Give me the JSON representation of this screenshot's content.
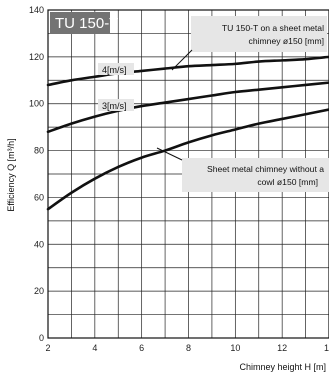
{
  "chart_data": {
    "type": "line",
    "title": "TU 150-T",
    "xlabel": "Chimney height H [m]",
    "ylabel": "Efficiency Q [m³/h]",
    "xlim": [
      2,
      14
    ],
    "ylim": [
      0,
      140
    ],
    "xticks": [
      2,
      4,
      6,
      8,
      10,
      12,
      14
    ],
    "yticks": [
      0,
      20,
      40,
      60,
      80,
      100,
      120,
      140
    ],
    "grid": true,
    "series": [
      {
        "name": "4[m/s]",
        "group": "TU 150-T on a sheet metal chimney ø150 [mm]",
        "x": [
          2,
          3,
          4,
          5,
          6,
          7,
          8,
          9,
          10,
          11,
          12,
          13,
          14
        ],
        "y": [
          108,
          110,
          111.5,
          113,
          114,
          115,
          116,
          116.5,
          117,
          118,
          118.5,
          119,
          120
        ]
      },
      {
        "name": "3[m/s]",
        "group": "TU 150-T on a sheet metal chimney ø150 [mm]",
        "x": [
          2,
          3,
          4,
          5,
          6,
          7,
          8,
          9,
          10,
          11,
          12,
          13,
          14
        ],
        "y": [
          88,
          91.5,
          94.5,
          97,
          99,
          100.5,
          102,
          103.5,
          105,
          106,
          107,
          108,
          109
        ]
      },
      {
        "name": "Sheet metal chimney without a cowl ø150 [mm]",
        "x": [
          2,
          3,
          4,
          5,
          6,
          7,
          8,
          9,
          10,
          11,
          12,
          13,
          14
        ],
        "y": [
          55,
          62,
          68,
          73,
          77,
          80,
          83.5,
          86.5,
          89,
          91.5,
          93.5,
          95.5,
          97.5
        ]
      }
    ],
    "annotations": [
      {
        "label": "TU 150-T on a sheet metal chimney ø150 [mm]",
        "lines": [
          "TU 150-T on a sheet metal",
          "chimney ø150 [mm]"
        ]
      },
      {
        "label": "Sheet metal chimney without a cowl ø150 [mm]",
        "lines": [
          "Sheet metal chimney without a",
          "cowl ø150 [mm]"
        ]
      }
    ],
    "colors": {
      "line": "#111111",
      "grid": "#222222",
      "title_bg": "#737373",
      "note_bg": "#e6e6e6"
    }
  }
}
